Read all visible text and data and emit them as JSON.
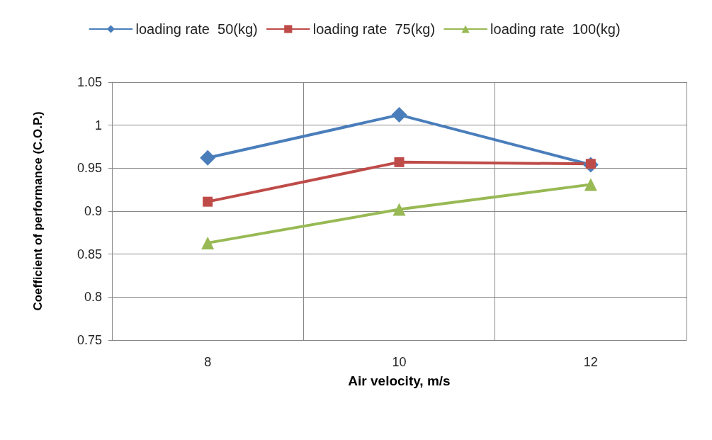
{
  "chart_data": {
    "type": "line",
    "xlabel": "Air velocity, m/s",
    "ylabel": "Coefficient of performance (C.O.P.)",
    "categories": [
      "8",
      "10",
      "12"
    ],
    "series": [
      {
        "name": "loading rate  50(kg)",
        "color": "#4a7ebb",
        "marker": "diamond",
        "values": [
          0.962,
          1.012,
          0.954
        ]
      },
      {
        "name": "loading rate  75(kg)",
        "color": "#be4b48",
        "marker": "square",
        "values": [
          0.911,
          0.957,
          0.955
        ]
      },
      {
        "name": "loading rate  100(kg)",
        "color": "#98b954",
        "marker": "triangle",
        "values": [
          0.863,
          0.902,
          0.931
        ]
      }
    ],
    "ylim": [
      0.75,
      1.05
    ],
    "yticks": [
      0.75,
      0.8,
      0.85,
      0.9,
      0.95,
      1,
      1.05
    ],
    "grid": true,
    "legend": "top",
    "line_style": "solid"
  }
}
